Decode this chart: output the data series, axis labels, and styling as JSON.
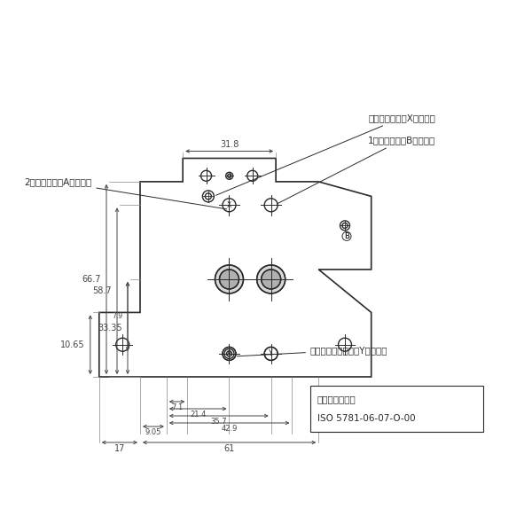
{
  "bg_color": "#ffffff",
  "line_color": "#2a2a2a",
  "dim_color": "#444444",
  "ann_fs": 7.5,
  "dim_fs": 7.0,
  "annotations": {
    "vent_port": "ベントポート（Xポート）",
    "primary_port": "1次側ポート（Bポート）",
    "secondary_port": "2次側ポート（Aポート）",
    "drain_port": "外部ドレンポート（Yポート）",
    "mount_face": "取付面（準拠）",
    "iso_std": "ISO 5781-06-07-O-00"
  },
  "dims": {
    "d318": "31.8",
    "d667": "66.7",
    "d587": "58.7",
    "d3335": "33.35",
    "d79": "7.9",
    "d1065": "10.65",
    "d905": "9.05",
    "d71": "7.1",
    "d214": "21.4",
    "d357": "35.7",
    "d429": "42.9",
    "d17": "17",
    "d61": "61"
  }
}
